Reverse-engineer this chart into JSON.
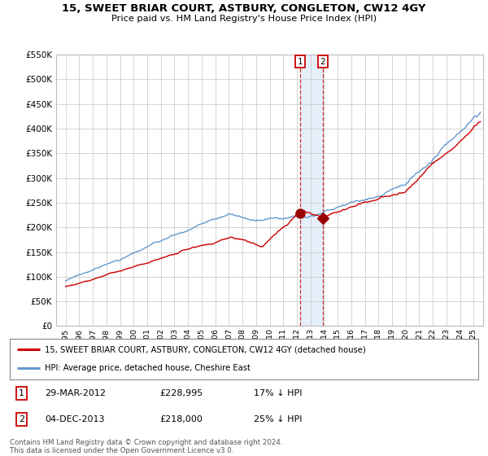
{
  "title": "15, SWEET BRIAR COURT, ASTBURY, CONGLETON, CW12 4GY",
  "subtitle": "Price paid vs. HM Land Registry's House Price Index (HPI)",
  "legend_line1": "15, SWEET BRIAR COURT, ASTBURY, CONGLETON, CW12 4GY (detached house)",
  "legend_line2": "HPI: Average price, detached house, Cheshire East",
  "footnote": "Contains HM Land Registry data © Crown copyright and database right 2024.\nThis data is licensed under the Open Government Licence v3.0.",
  "table": [
    {
      "num": "1",
      "date": "29-MAR-2012",
      "price": "£228,995",
      "note": "17% ↓ HPI"
    },
    {
      "num": "2",
      "date": "04-DEC-2013",
      "price": "£218,000",
      "note": "25% ↓ HPI"
    }
  ],
  "marker1_year": 2012.25,
  "marker1_price": 228995,
  "marker2_year": 2013.92,
  "marker2_price": 218000,
  "hpi_color": "#6699cc",
  "price_color": "#cc0000",
  "marker_color": "#990000",
  "bg_color": "#ffffff",
  "grid_color": "#cccccc",
  "ylim": [
    0,
    550000
  ],
  "yticks": [
    0,
    50000,
    100000,
    150000,
    200000,
    250000,
    300000,
    350000,
    400000,
    450000,
    500000,
    550000
  ],
  "xlim_left": 1994.3,
  "xlim_right": 2025.7,
  "fig_width": 6.0,
  "fig_height": 5.6,
  "dpi": 100
}
